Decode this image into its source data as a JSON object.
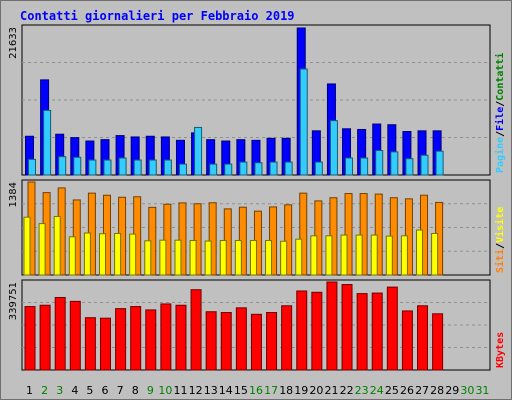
{
  "chart_data": {
    "type": "bar",
    "title": "Contatti giornalieri per Febbraio 2019",
    "categories": [
      "1",
      "2",
      "3",
      "4",
      "5",
      "6",
      "7",
      "8",
      "9",
      "10",
      "11",
      "12",
      "13",
      "14",
      "15",
      "16",
      "17",
      "18",
      "19",
      "20",
      "21",
      "22",
      "23",
      "24",
      "25",
      "26",
      "27",
      "28",
      "29",
      "30",
      "31"
    ],
    "weekend_days": [
      "2",
      "3",
      "9",
      "10",
      "16",
      "17",
      "23",
      "24",
      "30",
      "31"
    ],
    "panels": [
      {
        "name": "top",
        "ymax_label": "21633",
        "ymax": 21633,
        "legend": [
          {
            "text": "Pagine",
            "color": "#33ccff"
          },
          {
            "text": "/",
            "color": "#000000"
          },
          {
            "text": "File",
            "color": "#0000ff"
          },
          {
            "text": "/",
            "color": "#000000"
          },
          {
            "text": "Contatti",
            "color": "#008000"
          }
        ],
        "series": [
          {
            "name": "Contatti",
            "color": "#00a000",
            "values": [
              5700,
              14000,
              6000,
              5500,
              5000,
              5200,
              5800,
              5600,
              5700,
              5600,
              5100,
              6200,
              5200,
              5000,
              5200,
              5100,
              5400,
              5400,
              21633,
              6500,
              13400,
              6800,
              6700,
              7500,
              7400,
              6400,
              6500,
              6500,
              null,
              null,
              null
            ]
          },
          {
            "name": "File",
            "color": "#0000ff",
            "values": [
              5700,
              14000,
              6000,
              5500,
              5000,
              5200,
              5800,
              5600,
              5700,
              5600,
              5100,
              6200,
              5200,
              5000,
              5200,
              5100,
              5400,
              5400,
              21633,
              6500,
              13400,
              6800,
              6700,
              7500,
              7400,
              6400,
              6500,
              6500,
              null,
              null,
              null
            ]
          },
          {
            "name": "Pagine",
            "color": "#33ccff",
            "values": [
              2300,
              9500,
              2700,
              2600,
              2200,
              2200,
              2500,
              2200,
              2200,
              2200,
              1600,
              7000,
              1600,
              1600,
              1900,
              1800,
              1900,
              1900,
              15600,
              1900,
              8000,
              2500,
              2500,
              3600,
              3400,
              2400,
              2900,
              3500,
              null,
              null,
              null
            ]
          }
        ]
      },
      {
        "name": "middle",
        "ymax_label": "1384",
        "ymax": 1384,
        "legend": [
          {
            "text": "Siti",
            "color": "#ff8000"
          },
          {
            "text": "/",
            "color": "#000000"
          },
          {
            "text": "Visite",
            "color": "#ffff00"
          }
        ],
        "series": [
          {
            "name": "Siti",
            "color": "#ff8c00",
            "values": [
              1384,
              1226,
              1296,
              1117,
              1218,
              1187,
              1157,
              1164,
              1007,
              1053,
              1073,
              1060,
              1075,
              984,
              1009,
              950,
              1013,
              1044,
              1218,
              1103,
              1150,
              1212,
              1212,
              1204,
              1150,
              1133,
              1187,
              1080,
              null,
              null,
              null
            ]
          },
          {
            "name": "Visite",
            "color": "#ffff00",
            "values": [
              860,
              765,
              870,
              568,
              625,
              614,
              618,
              609,
              509,
              518,
              518,
              513,
              505,
              513,
              513,
              513,
              513,
              502,
              533,
              583,
              583,
              594,
              594,
              594,
              579,
              583,
              669,
              618,
              null,
              null,
              null
            ]
          }
        ]
      },
      {
        "name": "bottom",
        "ymax_label": "339751",
        "ymax": 339751,
        "legend": [
          {
            "text": "KBytes",
            "color": "#ff0000"
          }
        ],
        "series": [
          {
            "name": "KBytes",
            "color": "#ff0000",
            "values": [
              245000,
              250000,
              280000,
              265000,
              202000,
              200000,
              237000,
              245000,
              232000,
              255000,
              250000,
              310000,
              225000,
              222000,
              240000,
              215000,
              222000,
              248000,
              305000,
              300000,
              339751,
              330000,
              295000,
              297000,
              320000,
              228000,
              248000,
              217000,
              null,
              null,
              null
            ]
          }
        ]
      }
    ],
    "ylim_top": [
      0,
      21633
    ],
    "ylim_middle": [
      0,
      1384
    ],
    "ylim_bottom": [
      0,
      339751
    ]
  }
}
